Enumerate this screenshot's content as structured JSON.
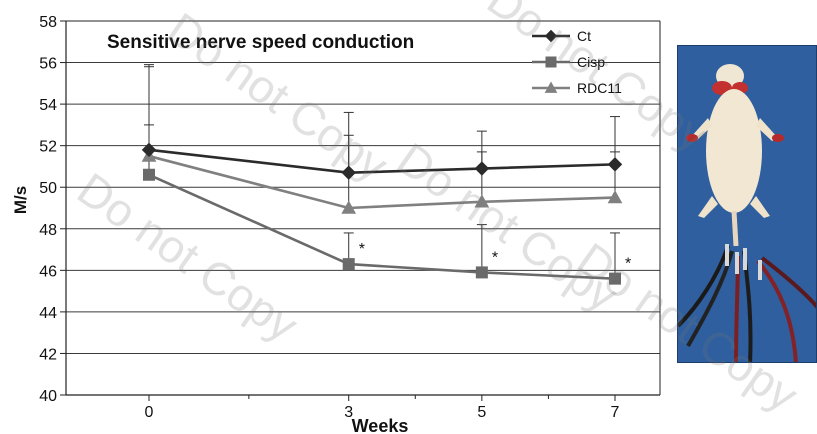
{
  "chart_data": {
    "type": "line",
    "title": "Sensitive nerve speed conduction",
    "xlabel": "Weeks",
    "ylabel": "M/s",
    "x": [
      0,
      3,
      5,
      7
    ],
    "categories": [
      "0",
      "3",
      "5",
      "7"
    ],
    "xlim": [
      0,
      7
    ],
    "ylim": [
      40,
      58
    ],
    "yticks": [
      "40",
      "42",
      "44",
      "46",
      "48",
      "50",
      "52",
      "54",
      "56",
      "58"
    ],
    "grid": true,
    "legend_position": "top-right",
    "series": [
      {
        "name": "Ct",
        "marker": "diamond",
        "color": "#2b2b2b",
        "values": [
          51.8,
          50.7,
          50.9,
          51.1
        ],
        "error_upper": [
          55.8,
          53.6,
          52.7,
          53.4
        ],
        "annotations": [
          "",
          "",
          "",
          ""
        ]
      },
      {
        "name": "Cisp",
        "marker": "square",
        "color": "#6a6a6a",
        "values": [
          50.6,
          46.3,
          45.9,
          45.6
        ],
        "error_upper": [
          55.9,
          47.8,
          48.2,
          47.8
        ],
        "annotations": [
          "",
          "*",
          "*",
          "*"
        ]
      },
      {
        "name": "RDC11",
        "marker": "triangle",
        "color": "#808080",
        "values": [
          51.5,
          49.0,
          49.3,
          49.5
        ],
        "error_upper": [
          53.0,
          52.5,
          51.7,
          51.7
        ],
        "annotations": [
          "",
          "",
          "",
          ""
        ]
      }
    ]
  },
  "photo": {
    "icon": "mouse-electrodes-photo"
  },
  "watermark": {
    "text": "Do not Copy"
  }
}
